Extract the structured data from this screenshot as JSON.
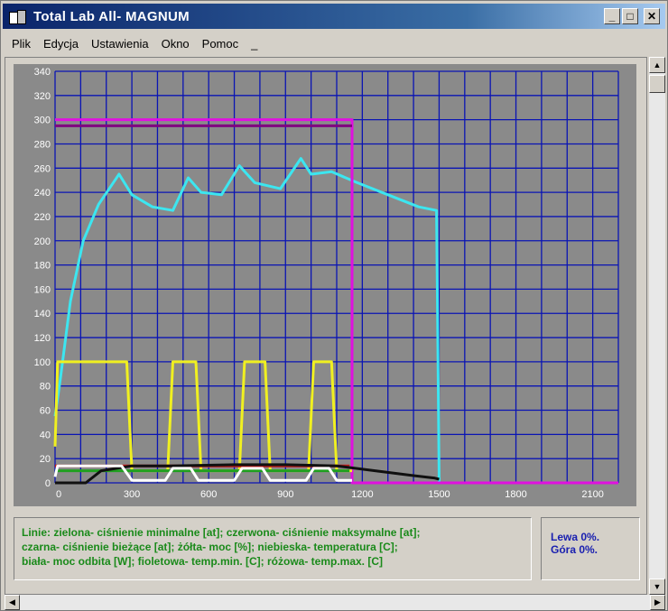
{
  "window": {
    "title": "Total Lab All- MAGNUM",
    "minimize_label": "_",
    "maximize_label": "□",
    "close_label": "✕"
  },
  "menu": [
    "Plik",
    "Edycja",
    "Ustawienia",
    "Okno",
    "Pomoc",
    "_"
  ],
  "legend": {
    "line1": "Linie: zielona- ciśnienie minimalne [at]; czerwona- ciśnienie maksymalne [at];",
    "line2": "czarna- ciśnienie bieżące [at]; żółta- moc [%]; niebieska- temperatura [C];",
    "line3": "biała- moc odbita [W]; fioletowa- temp.min. [C]; różowa- temp.max. [C]"
  },
  "status": {
    "left": "Lewa 0%.",
    "top": "Góra 0%."
  },
  "colors": {
    "plot_bg": "#8a8a8a",
    "grid": "#0a14b4",
    "axis_text": "#ffffff"
  },
  "chart_data": {
    "type": "line",
    "ylim": [
      0,
      340
    ],
    "xlim": [
      0,
      2200
    ],
    "yticks": [
      0,
      20,
      40,
      60,
      80,
      100,
      120,
      140,
      160,
      180,
      200,
      220,
      240,
      260,
      280,
      300,
      320,
      340
    ],
    "xtick_labels": [
      {
        "value": 0,
        "label": "0"
      },
      {
        "value": 300,
        "label": "300"
      },
      {
        "value": 600,
        "label": "600"
      },
      {
        "value": 900,
        "label": "900"
      },
      {
        "value": 1200,
        "label": "1200"
      },
      {
        "value": 1500,
        "label": "1500"
      },
      {
        "value": 1800,
        "label": "1800"
      },
      {
        "value": 2100,
        "label": "2100"
      }
    ],
    "grid": true,
    "series": [
      {
        "color": "#3ce6f0",
        "points": [
          [
            0,
            55
          ],
          [
            20,
            85
          ],
          [
            60,
            150
          ],
          [
            110,
            200
          ],
          [
            170,
            230
          ],
          [
            250,
            255
          ],
          [
            300,
            238
          ],
          [
            380,
            228
          ],
          [
            460,
            225
          ],
          [
            520,
            252
          ],
          [
            570,
            240
          ],
          [
            650,
            238
          ],
          [
            720,
            262
          ],
          [
            780,
            248
          ],
          [
            880,
            243
          ],
          [
            960,
            268
          ],
          [
            1000,
            255
          ],
          [
            1080,
            257
          ],
          [
            1180,
            248
          ],
          [
            1300,
            238
          ],
          [
            1420,
            228
          ],
          [
            1490,
            225
          ],
          [
            1500,
            0
          ]
        ]
      },
      {
        "color": "#e010e0",
        "points": [
          [
            0,
            300
          ],
          [
            1160,
            300
          ],
          [
            1160,
            0
          ],
          [
            2200,
            0
          ]
        ]
      },
      {
        "color": "#800080",
        "points": [
          [
            0,
            295
          ],
          [
            1160,
            295
          ]
        ]
      },
      {
        "color": "#f0f020",
        "points": [
          [
            0,
            30
          ],
          [
            10,
            100
          ],
          [
            280,
            100
          ],
          [
            300,
            10
          ],
          [
            440,
            10
          ],
          [
            460,
            100
          ],
          [
            550,
            100
          ],
          [
            570,
            10
          ],
          [
            720,
            10
          ],
          [
            740,
            100
          ],
          [
            820,
            100
          ],
          [
            840,
            10
          ],
          [
            990,
            10
          ],
          [
            1010,
            100
          ],
          [
            1080,
            100
          ],
          [
            1100,
            10
          ],
          [
            1160,
            10
          ]
        ]
      },
      {
        "color": "#c01818",
        "points": [
          [
            0,
            14
          ],
          [
            1150,
            14
          ]
        ]
      },
      {
        "color": "#20a020",
        "points": [
          [
            0,
            10
          ],
          [
            1150,
            10
          ]
        ]
      },
      {
        "color": "#101010",
        "points": [
          [
            0,
            0
          ],
          [
            120,
            0
          ],
          [
            180,
            10
          ],
          [
            300,
            14
          ],
          [
            450,
            14
          ],
          [
            700,
            15
          ],
          [
            900,
            15
          ],
          [
            1100,
            14
          ],
          [
            1250,
            10
          ],
          [
            1400,
            6
          ],
          [
            1480,
            4
          ],
          [
            1500,
            3
          ]
        ]
      },
      {
        "color": "#ffffff",
        "points": [
          [
            0,
            5
          ],
          [
            10,
            14
          ],
          [
            260,
            14
          ],
          [
            300,
            2
          ],
          [
            430,
            2
          ],
          [
            460,
            12
          ],
          [
            530,
            12
          ],
          [
            560,
            2
          ],
          [
            700,
            2
          ],
          [
            730,
            12
          ],
          [
            810,
            12
          ],
          [
            840,
            2
          ],
          [
            980,
            2
          ],
          [
            1010,
            12
          ],
          [
            1070,
            12
          ],
          [
            1100,
            2
          ],
          [
            1160,
            2
          ]
        ]
      }
    ]
  }
}
